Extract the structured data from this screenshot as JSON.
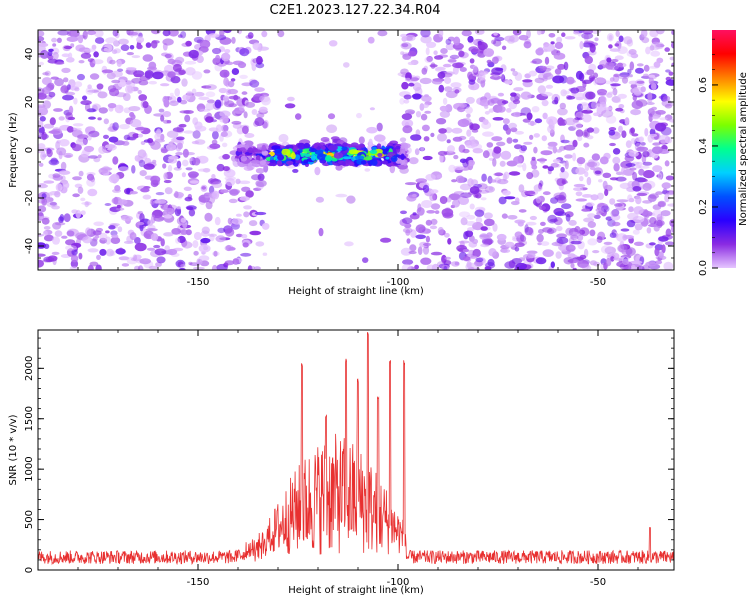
{
  "figure": {
    "title": "C2E1.2023.127.22.34.R04"
  },
  "chart_data": [
    {
      "type": "heatmap",
      "xlabel": "Height of straight line (km)",
      "ylabel": "Frequency (Hz)",
      "xlim": [
        -190,
        -31
      ],
      "ylim": [
        -50,
        50
      ],
      "xticks": [
        -150,
        -100,
        -50
      ],
      "yticks": [
        -40,
        -20,
        0,
        20,
        40
      ],
      "grid": false,
      "colorbar": {
        "label": "Normalized spectral amplitude",
        "range": [
          0,
          0.78
        ],
        "ticks": [
          0.0,
          0.2,
          0.4,
          0.6
        ],
        "colormap": [
          "#e6c6ff",
          "#8a2be2",
          "#2a00ff",
          "#0050ff",
          "#00d0ff",
          "#00ff90",
          "#7cff00",
          "#ffff00",
          "#ff8000",
          "#ff0000",
          "#ff1060"
        ]
      },
      "features": {
        "signal_band": {
          "x_range": [
            -140,
            -98
          ],
          "center_frequency": -2,
          "half_width": 4,
          "peak_amplitude": 0.75
        },
        "blank_region": {
          "x_range": [
            -133,
            -99
          ]
        },
        "noise_floor_amplitude": 0.05
      }
    },
    {
      "type": "line",
      "xlabel": "Height of straight line (km)",
      "ylabel": "SNR (10 * v/v)",
      "xlim": [
        -190,
        -31
      ],
      "ylim": [
        0,
        2380
      ],
      "xticks": [
        -150,
        -100,
        -50
      ],
      "yticks": [
        0,
        500,
        1000,
        1500,
        2000
      ],
      "grid": false,
      "color": "#e83030",
      "baseline_level": 150,
      "signal_region": [
        -133,
        -98
      ],
      "peaks": [
        {
          "x": -124,
          "y": 2050
        },
        {
          "x": -113,
          "y": 2100
        },
        {
          "x": -107.5,
          "y": 2380
        },
        {
          "x": -102,
          "y": 2090
        },
        {
          "x": -98.5,
          "y": 2080
        },
        {
          "x": -118,
          "y": 1550
        },
        {
          "x": -110,
          "y": 1900
        },
        {
          "x": -105,
          "y": 1750
        },
        {
          "x": -37,
          "y": 420
        }
      ]
    }
  ]
}
